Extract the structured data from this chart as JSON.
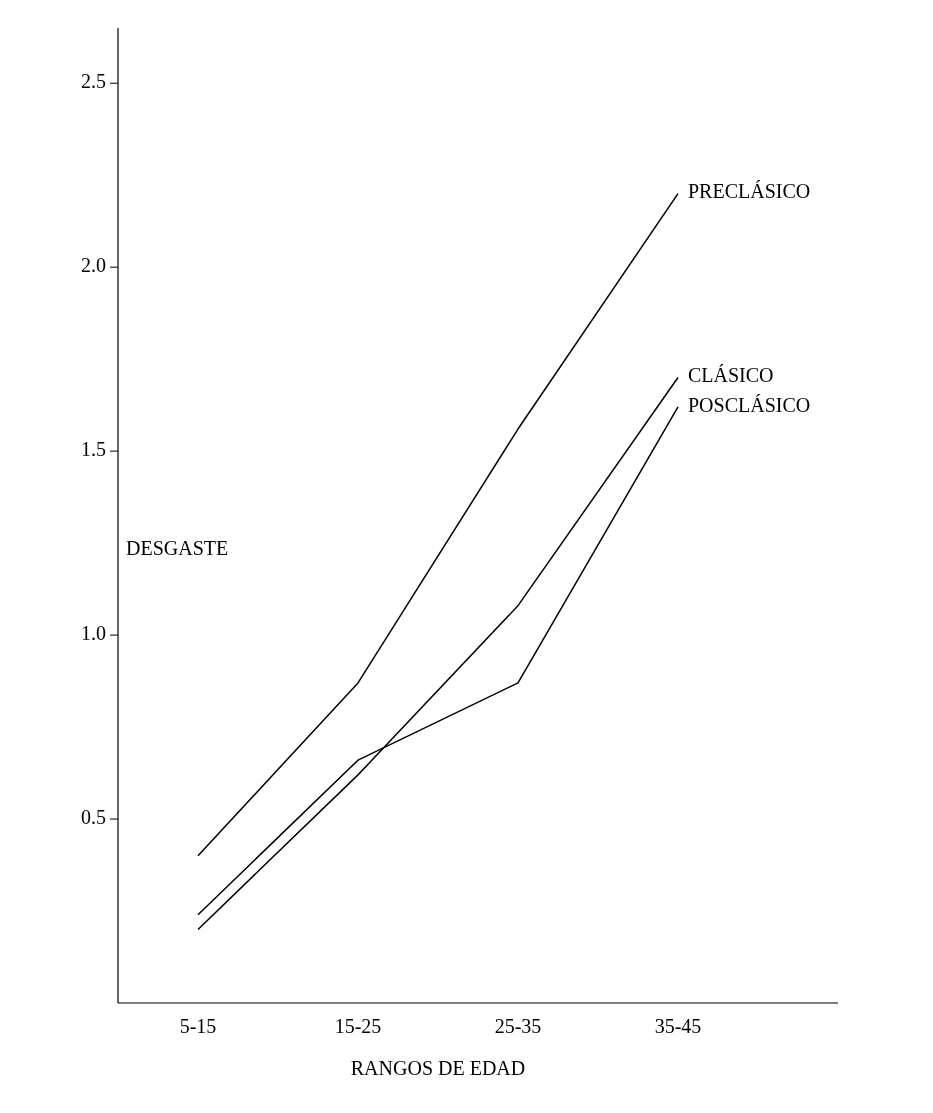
{
  "chart_data": {
    "type": "line",
    "xlabel": "RANGOS DE EDAD",
    "ylabel": "DESGASTE",
    "categories": [
      "5-15",
      "15-25",
      "25-35",
      "35-45"
    ],
    "ylim": [
      0,
      2.65
    ],
    "yticks": [
      {
        "value": 0.5,
        "label": "0.5"
      },
      {
        "value": 1,
        "label": "1.0"
      },
      {
        "value": 1.5,
        "label": "1.5"
      },
      {
        "value": 2,
        "label": "2.0"
      },
      {
        "value": 2.5,
        "label": "2.5"
      }
    ],
    "grid": false,
    "legend": false,
    "marker": "none",
    "line_style": "solid",
    "series": [
      {
        "name": "PRECLÁSICO",
        "color": "#000000",
        "values": [
          0.4,
          0.87,
          1.56,
          2.2
        ]
      },
      {
        "name": "CLÁSICO",
        "color": "#000000",
        "values": [
          0.2,
          0.62,
          1.08,
          1.7
        ]
      },
      {
        "name": "POSCLÁSICO",
        "color": "#000000",
        "values": [
          0.24,
          0.66,
          0.87,
          1.62
        ]
      }
    ]
  }
}
